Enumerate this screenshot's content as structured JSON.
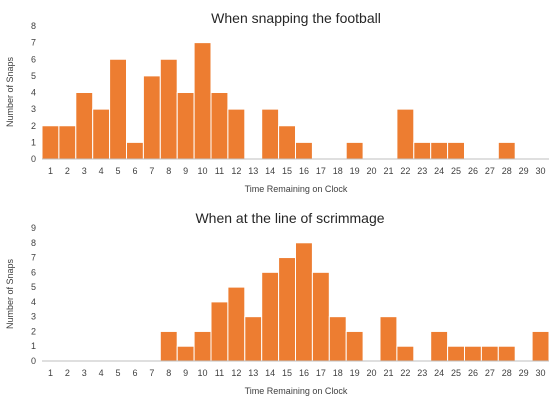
{
  "colors": {
    "bar": "#ED7D31",
    "bar_edge": "#ffffff",
    "axis": "#bfbfbf",
    "text": "#404040"
  },
  "chart_data": [
    {
      "type": "bar",
      "title": "When snapping the football",
      "xlabel": "Time Remaining on Clock",
      "ylabel": "Number of Snaps",
      "categories": [
        "1",
        "2",
        "3",
        "4",
        "5",
        "6",
        "7",
        "8",
        "9",
        "10",
        "11",
        "12",
        "13",
        "14",
        "15",
        "16",
        "17",
        "18",
        "19",
        "20",
        "21",
        "22",
        "23",
        "24",
        "25",
        "26",
        "27",
        "28",
        "29",
        "30"
      ],
      "values": [
        2,
        2,
        4,
        3,
        6,
        1,
        5,
        6,
        4,
        7,
        4,
        3,
        0,
        3,
        2,
        1,
        0,
        0,
        1,
        0,
        0,
        3,
        1,
        1,
        1,
        0,
        0,
        1,
        0,
        0
      ],
      "ylim": [
        0,
        8
      ],
      "yticks": [
        "0",
        "1",
        "2",
        "3",
        "4",
        "5",
        "6",
        "7",
        "8"
      ],
      "grid": false,
      "legend": "none"
    },
    {
      "type": "bar",
      "title": "When at the line of scrimmage",
      "xlabel": "Time Remaining on Clock",
      "ylabel": "Number of Snaps",
      "categories": [
        "1",
        "2",
        "3",
        "4",
        "5",
        "6",
        "7",
        "8",
        "9",
        "10",
        "11",
        "12",
        "13",
        "14",
        "15",
        "16",
        "17",
        "18",
        "19",
        "20",
        "21",
        "22",
        "23",
        "24",
        "25",
        "26",
        "27",
        "28",
        "29",
        "30"
      ],
      "values": [
        0,
        0,
        0,
        0,
        0,
        0,
        0,
        2,
        1,
        2,
        4,
        5,
        3,
        6,
        7,
        8,
        6,
        3,
        2,
        0,
        3,
        1,
        0,
        2,
        1,
        1,
        1,
        1,
        0,
        2
      ],
      "ylim": [
        0,
        9
      ],
      "yticks": [
        "0",
        "1",
        "2",
        "3",
        "4",
        "5",
        "6",
        "7",
        "8",
        "9"
      ],
      "grid": false,
      "legend": "none"
    }
  ]
}
